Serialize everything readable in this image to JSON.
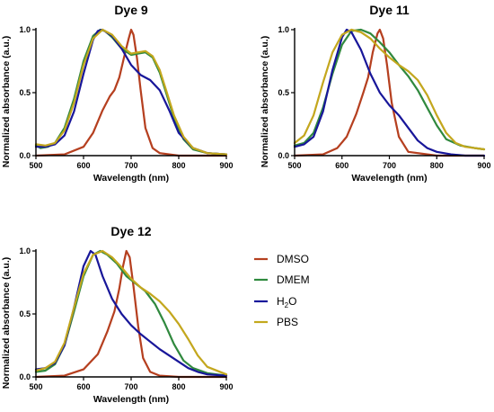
{
  "colors": {
    "DMSO": "#b5401f",
    "DMEM": "#2f8a3e",
    "H2O": "#17179a",
    "PBS": "#c3a81d",
    "glow": "#f7b8d4"
  },
  "legend": [
    {
      "key": "DMSO",
      "label": "DMSO"
    },
    {
      "key": "DMEM",
      "label": "DMEM"
    },
    {
      "key": "H2O",
      "label": "H",
      "sub": "2",
      "tail": "O"
    },
    {
      "key": "PBS",
      "label": "PBS"
    }
  ],
  "chart_data": [
    {
      "type": "line",
      "title": "Dye 9",
      "xlabel": "Wavelength (nm)",
      "ylabel": "Normalized absorbance (a.u.)",
      "xlim": [
        500,
        900
      ],
      "ylim": [
        0,
        1.0
      ],
      "xticks": [
        500,
        600,
        700,
        800,
        900
      ],
      "yticks": [
        0.0,
        0.5,
        1.0
      ],
      "series": [
        {
          "key": "DMSO",
          "x": [
            500,
            560,
            600,
            620,
            640,
            655,
            665,
            675,
            685,
            695,
            700,
            705,
            712,
            720,
            730,
            745,
            760,
            800,
            900
          ],
          "y": [
            0.0,
            0.01,
            0.07,
            0.18,
            0.36,
            0.47,
            0.52,
            0.62,
            0.78,
            0.93,
            1.0,
            0.96,
            0.78,
            0.52,
            0.22,
            0.06,
            0.02,
            0.0,
            0.0
          ]
        },
        {
          "key": "DMEM",
          "x": [
            500,
            510,
            525,
            540,
            560,
            580,
            600,
            620,
            635,
            645,
            660,
            680,
            700,
            715,
            730,
            745,
            760,
            775,
            790,
            810,
            830,
            860,
            900
          ],
          "y": [
            0.08,
            0.06,
            0.07,
            0.1,
            0.22,
            0.45,
            0.75,
            0.95,
            1.0,
            0.99,
            0.94,
            0.85,
            0.8,
            0.81,
            0.82,
            0.78,
            0.66,
            0.48,
            0.3,
            0.13,
            0.05,
            0.02,
            0.01
          ]
        },
        {
          "key": "H2O",
          "x": [
            500,
            520,
            540,
            560,
            580,
            600,
            620,
            630,
            640,
            660,
            680,
            700,
            720,
            740,
            760,
            780,
            800,
            830,
            860,
            900
          ],
          "y": [
            0.07,
            0.07,
            0.09,
            0.16,
            0.35,
            0.65,
            0.92,
            0.99,
            1.0,
            0.95,
            0.85,
            0.72,
            0.64,
            0.6,
            0.52,
            0.36,
            0.18,
            0.06,
            0.02,
            0.01
          ]
        },
        {
          "key": "PBS",
          "x": [
            500,
            520,
            540,
            560,
            580,
            600,
            620,
            640,
            660,
            680,
            700,
            715,
            730,
            745,
            760,
            775,
            790,
            810,
            830,
            860,
            900
          ],
          "y": [
            0.09,
            0.08,
            0.1,
            0.2,
            0.42,
            0.72,
            0.93,
            1.0,
            0.96,
            0.87,
            0.81,
            0.82,
            0.83,
            0.79,
            0.68,
            0.5,
            0.32,
            0.15,
            0.06,
            0.02,
            0.01
          ]
        }
      ]
    },
    {
      "type": "line",
      "title": "Dye 11",
      "xlabel": "Wavelength (nm)",
      "ylabel": "Normalized absorbance (a.u.)",
      "xlim": [
        500,
        900
      ],
      "ylim": [
        0,
        1.0
      ],
      "xticks": [
        500,
        600,
        700,
        800,
        900
      ],
      "yticks": [
        0.0,
        0.5,
        1.0
      ],
      "series": [
        {
          "key": "DMSO",
          "x": [
            500,
            560,
            590,
            610,
            630,
            645,
            655,
            665,
            675,
            680,
            687,
            695,
            705,
            720,
            740,
            800,
            900
          ],
          "y": [
            0.0,
            0.01,
            0.06,
            0.15,
            0.33,
            0.5,
            0.62,
            0.82,
            0.97,
            1.0,
            0.93,
            0.72,
            0.42,
            0.15,
            0.03,
            0.0,
            0.0
          ]
        },
        {
          "key": "DMEM",
          "x": [
            500,
            520,
            540,
            560,
            580,
            600,
            620,
            640,
            660,
            680,
            700,
            720,
            740,
            760,
            780,
            800,
            820,
            850,
            880,
            900
          ],
          "y": [
            0.08,
            0.1,
            0.18,
            0.38,
            0.65,
            0.88,
            0.99,
            1.0,
            0.97,
            0.9,
            0.82,
            0.72,
            0.63,
            0.52,
            0.38,
            0.24,
            0.13,
            0.08,
            0.06,
            0.05
          ]
        },
        {
          "key": "H2O",
          "x": [
            500,
            520,
            540,
            560,
            580,
            600,
            610,
            620,
            640,
            660,
            680,
            700,
            720,
            740,
            760,
            780,
            800,
            830,
            860,
            900
          ],
          "y": [
            0.07,
            0.09,
            0.15,
            0.35,
            0.68,
            0.94,
            1.0,
            0.98,
            0.84,
            0.65,
            0.5,
            0.4,
            0.32,
            0.22,
            0.12,
            0.06,
            0.03,
            0.01,
            0.0,
            0.0
          ]
        },
        {
          "key": "PBS",
          "x": [
            500,
            520,
            540,
            560,
            580,
            600,
            620,
            640,
            660,
            680,
            700,
            720,
            740,
            760,
            780,
            800,
            820,
            840,
            860,
            900
          ],
          "y": [
            0.1,
            0.16,
            0.32,
            0.58,
            0.82,
            0.96,
            1.0,
            0.98,
            0.93,
            0.85,
            0.78,
            0.72,
            0.67,
            0.6,
            0.48,
            0.32,
            0.18,
            0.1,
            0.07,
            0.05
          ]
        }
      ]
    },
    {
      "type": "line",
      "title": "Dye 12",
      "xlabel": "Wavelength (nm)",
      "ylabel": "Normalized absorbance (a.u.)",
      "xlim": [
        500,
        900
      ],
      "ylim": [
        0,
        1.0
      ],
      "xticks": [
        500,
        600,
        700,
        800,
        900
      ],
      "yticks": [
        0.0,
        0.5,
        1.0
      ],
      "series": [
        {
          "key": "DMSO",
          "x": [
            500,
            560,
            600,
            630,
            650,
            665,
            675,
            683,
            690,
            697,
            705,
            715,
            725,
            740,
            760,
            800,
            900
          ],
          "y": [
            0.0,
            0.01,
            0.06,
            0.18,
            0.36,
            0.52,
            0.7,
            0.88,
            1.0,
            0.95,
            0.72,
            0.4,
            0.15,
            0.04,
            0.01,
            0.0,
            0.0
          ]
        },
        {
          "key": "DMEM",
          "x": [
            500,
            520,
            540,
            560,
            580,
            600,
            620,
            635,
            650,
            670,
            690,
            710,
            730,
            750,
            770,
            790,
            810,
            830,
            860,
            900
          ],
          "y": [
            0.04,
            0.05,
            0.1,
            0.25,
            0.52,
            0.8,
            0.97,
            1.0,
            0.97,
            0.9,
            0.8,
            0.74,
            0.68,
            0.58,
            0.43,
            0.26,
            0.13,
            0.07,
            0.03,
            0.01
          ]
        },
        {
          "key": "H2O",
          "x": [
            500,
            520,
            540,
            560,
            580,
            600,
            615,
            625,
            640,
            660,
            680,
            700,
            720,
            740,
            760,
            780,
            800,
            820,
            840,
            860,
            900
          ],
          "y": [
            0.06,
            0.07,
            0.11,
            0.25,
            0.55,
            0.88,
            1.0,
            0.97,
            0.8,
            0.62,
            0.5,
            0.41,
            0.34,
            0.28,
            0.22,
            0.17,
            0.12,
            0.07,
            0.04,
            0.02,
            0.01
          ]
        },
        {
          "key": "PBS",
          "x": [
            500,
            520,
            540,
            560,
            580,
            600,
            620,
            640,
            660,
            680,
            700,
            720,
            740,
            760,
            780,
            800,
            820,
            840,
            860,
            900
          ],
          "y": [
            0.05,
            0.07,
            0.12,
            0.27,
            0.55,
            0.82,
            0.97,
            1.0,
            0.95,
            0.87,
            0.78,
            0.71,
            0.66,
            0.6,
            0.52,
            0.42,
            0.3,
            0.17,
            0.08,
            0.02
          ]
        }
      ]
    }
  ]
}
